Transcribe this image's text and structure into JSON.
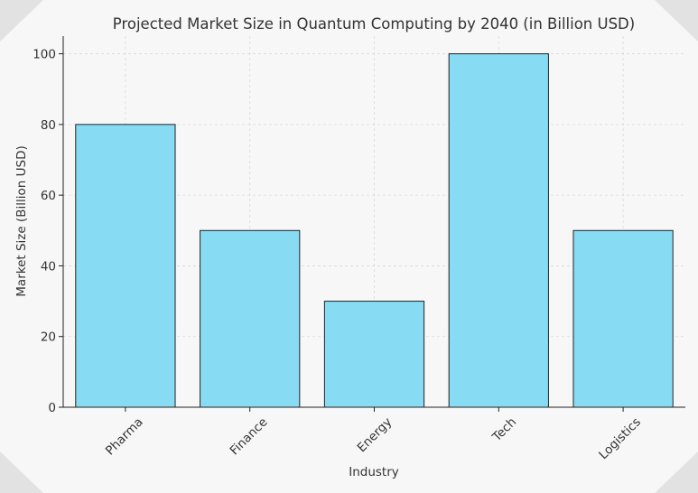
{
  "chart_data": {
    "type": "bar",
    "title": "Projected Market Size in Quantum Computing by 2040 (in Billion USD)",
    "xlabel": "Industry",
    "ylabel": "Market Size (Billion USD)",
    "categories": [
      "Pharma",
      "Finance",
      "Energy",
      "Tech",
      "Logistics"
    ],
    "values": [
      80,
      50,
      30,
      100,
      50
    ],
    "ylim": [
      0,
      105
    ],
    "yticks": [
      0,
      20,
      40,
      60,
      80,
      100
    ],
    "grid": true,
    "bar_color": "#87dcf3",
    "edge_color": "#222222",
    "background_color": "#f7f7f7"
  }
}
